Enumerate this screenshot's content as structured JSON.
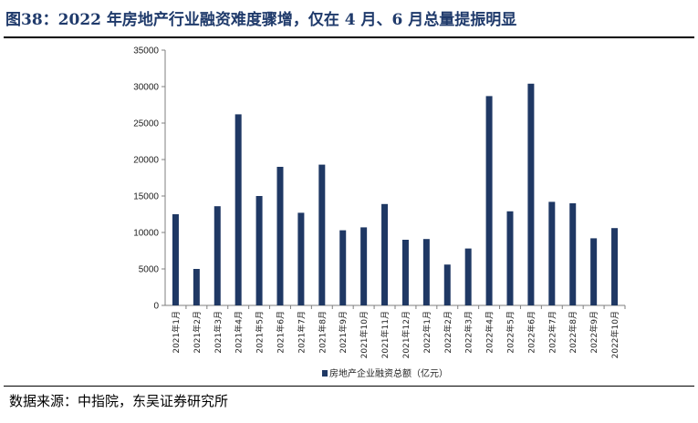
{
  "header": {
    "title": "图38：2022 年房地产行业融资难度骤增，仅在 4 月、6 月总量提振明显"
  },
  "footer": {
    "source": "数据来源：中指院，东吴证券研究所"
  },
  "colors": {
    "bar": "#1f3864",
    "title": "#1f3a6b",
    "axis": "#7f7f7f"
  },
  "chart_data": {
    "type": "bar",
    "title": "",
    "xlabel": "",
    "ylabel": "",
    "ylim": [
      0,
      35000
    ],
    "yticks": [
      "0",
      "5000",
      "10000",
      "15000",
      "20000",
      "25000",
      "30000",
      "35000"
    ],
    "grid": false,
    "legend_position": "bottom",
    "categories": [
      "2021年1月",
      "2021年2月",
      "2021年3月",
      "2021年4月",
      "2021年5月",
      "2021年6月",
      "2021年7月",
      "2021年8月",
      "2021年9月",
      "2021年10月",
      "2021年11月",
      "2021年12月",
      "2022年1月",
      "2022年2月",
      "2022年3月",
      "2022年4月",
      "2022年5月",
      "2022年6月",
      "2022年7月",
      "2022年8月",
      "2022年9月",
      "2022年10月"
    ],
    "series": [
      {
        "name": "房地产企业融资总额（亿元）",
        "values": [
          12500,
          5000,
          13600,
          26200,
          15000,
          19000,
          12700,
          19300,
          10300,
          10700,
          13900,
          9000,
          9100,
          5600,
          7800,
          28700,
          12900,
          30400,
          14200,
          14000,
          9200,
          10600
        ]
      }
    ]
  }
}
